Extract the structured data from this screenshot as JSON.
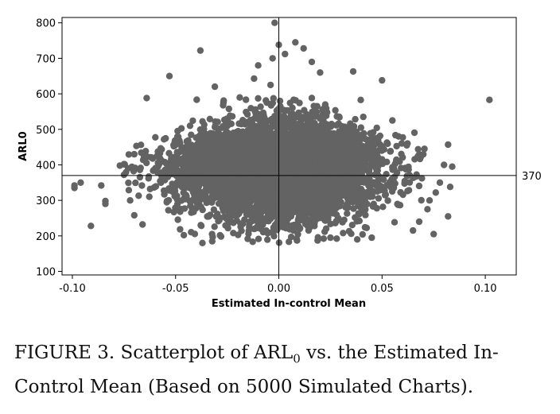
{
  "chart_data": {
    "type": "scatter",
    "title": "",
    "xlabel": "Estimated In-control Mean",
    "ylabel": "ARL0",
    "xlim": [
      -0.105,
      0.115
    ],
    "ylim": [
      90,
      815
    ],
    "x_ticks": [
      -0.1,
      -0.05,
      0.0,
      0.05,
      0.1
    ],
    "x_tick_labels": [
      "-0.10",
      "-0.05",
      "0.00",
      "0.05",
      "0.10"
    ],
    "y_ticks": [
      100,
      200,
      300,
      400,
      500,
      600,
      700,
      800
    ],
    "y_tick_labels": [
      "100",
      "200",
      "300",
      "400",
      "500",
      "600",
      "700",
      "800"
    ],
    "reference_lines": {
      "vertical_x": 0.0,
      "horizontal_y": 370,
      "horizontal_label": "370"
    },
    "grid": false,
    "legend": "none",
    "n_points": 5000,
    "marker_color": "#636363",
    "outlier_points": [
      {
        "x": -0.099,
        "y": 335
      },
      {
        "x": -0.099,
        "y": 342
      },
      {
        "x": -0.096,
        "y": 350
      },
      {
        "x": -0.091,
        "y": 228
      },
      {
        "x": -0.086,
        "y": 342
      },
      {
        "x": -0.084,
        "y": 290
      },
      {
        "x": -0.084,
        "y": 298
      },
      {
        "x": -0.077,
        "y": 398
      },
      {
        "x": -0.075,
        "y": 402
      },
      {
        "x": -0.073,
        "y": 390
      },
      {
        "x": -0.075,
        "y": 372
      },
      {
        "x": -0.072,
        "y": 300
      },
      {
        "x": -0.07,
        "y": 430
      },
      {
        "x": -0.07,
        "y": 258
      },
      {
        "x": -0.066,
        "y": 232
      },
      {
        "x": -0.064,
        "y": 588
      },
      {
        "x": -0.053,
        "y": 650
      },
      {
        "x": -0.046,
        "y": 202
      },
      {
        "x": -0.038,
        "y": 722
      },
      {
        "x": -0.037,
        "y": 180
      },
      {
        "x": -0.031,
        "y": 620
      },
      {
        "x": -0.012,
        "y": 643
      },
      {
        "x": -0.01,
        "y": 680
      },
      {
        "x": -0.004,
        "y": 625
      },
      {
        "x": -0.003,
        "y": 700
      },
      {
        "x": -0.002,
        "y": 800
      },
      {
        "x": 0.0,
        "y": 738
      },
      {
        "x": 0.003,
        "y": 712
      },
      {
        "x": 0.008,
        "y": 745
      },
      {
        "x": 0.012,
        "y": 728
      },
      {
        "x": 0.016,
        "y": 690
      },
      {
        "x": 0.02,
        "y": 660
      },
      {
        "x": 0.025,
        "y": 195
      },
      {
        "x": 0.036,
        "y": 663
      },
      {
        "x": 0.038,
        "y": 190
      },
      {
        "x": 0.045,
        "y": 195
      },
      {
        "x": 0.05,
        "y": 638
      },
      {
        "x": 0.055,
        "y": 525
      },
      {
        "x": 0.058,
        "y": 480
      },
      {
        "x": 0.062,
        "y": 455
      },
      {
        "x": 0.065,
        "y": 215
      },
      {
        "x": 0.068,
        "y": 240
      },
      {
        "x": 0.07,
        "y": 430
      },
      {
        "x": 0.072,
        "y": 275
      },
      {
        "x": 0.073,
        "y": 300
      },
      {
        "x": 0.075,
        "y": 205
      },
      {
        "x": 0.076,
        "y": 322
      },
      {
        "x": 0.078,
        "y": 350
      },
      {
        "x": 0.08,
        "y": 400
      },
      {
        "x": 0.082,
        "y": 255
      },
      {
        "x": 0.082,
        "y": 457
      },
      {
        "x": 0.083,
        "y": 338
      },
      {
        "x": 0.084,
        "y": 395
      },
      {
        "x": 0.102,
        "y": 583
      }
    ],
    "bulk_distribution": {
      "x_mean": 0.0,
      "x_sd": 0.024,
      "y_center": 385,
      "y_spread": 80,
      "count": 4946
    }
  },
  "caption": {
    "prefix": "FIGURE 3. Scatterplot of ARL",
    "subscript": "0",
    "suffix": " vs. the Estimated In-Control Mean (Based on 5000 Simulated Charts)."
  }
}
